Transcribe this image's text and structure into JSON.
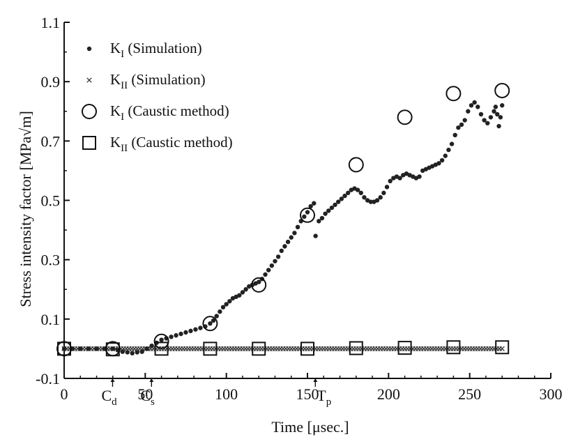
{
  "chart_data": {
    "type": "scatter",
    "title": "",
    "xlabel": "Time [μsec.]",
    "ylabel": "Stress intensity factor [MPa√m]",
    "xlim": [
      0,
      300
    ],
    "ylim": [
      -0.1,
      1.1
    ],
    "xticks": [
      "0",
      "50",
      "100",
      "150",
      "200",
      "250",
      "300"
    ],
    "yticks": [
      "-0.1",
      "0.1",
      "0.3",
      "0.5",
      "0.7",
      "0.9",
      "1.1"
    ],
    "annotations": [
      {
        "main": "C",
        "sub": "d",
        "x": 29
      },
      {
        "main": "C",
        "sub": "s",
        "x": 53
      },
      {
        "main": "T",
        "sub": "p",
        "x": 154
      }
    ],
    "legend_position": "top-left",
    "series": [
      {
        "name": "K_I (Simulation)",
        "label_main": "K",
        "label_sub": "I",
        "label_rest": " (Simulation)",
        "marker": "dot",
        "points": [
          [
            0,
            0.0
          ],
          [
            5,
            0.0
          ],
          [
            10,
            0.0
          ],
          [
            15,
            0.0
          ],
          [
            20,
            0.0
          ],
          [
            25,
            0.0
          ],
          [
            30,
            0.0
          ],
          [
            33,
            -0.005
          ],
          [
            36,
            -0.01
          ],
          [
            39,
            -0.012
          ],
          [
            42,
            -0.015
          ],
          [
            45,
            -0.012
          ],
          [
            48,
            -0.01
          ],
          [
            51,
            0.0
          ],
          [
            54,
            0.01
          ],
          [
            57,
            0.02
          ],
          [
            60,
            0.03
          ],
          [
            63,
            0.035
          ],
          [
            66,
            0.04
          ],
          [
            69,
            0.045
          ],
          [
            72,
            0.05
          ],
          [
            75,
            0.055
          ],
          [
            78,
            0.06
          ],
          [
            81,
            0.065
          ],
          [
            84,
            0.07
          ],
          [
            87,
            0.075
          ],
          [
            90,
            0.085
          ],
          [
            92,
            0.095
          ],
          [
            94,
            0.11
          ],
          [
            96,
            0.125
          ],
          [
            98,
            0.14
          ],
          [
            100,
            0.15
          ],
          [
            102,
            0.16
          ],
          [
            104,
            0.17
          ],
          [
            106,
            0.175
          ],
          [
            108,
            0.18
          ],
          [
            110,
            0.19
          ],
          [
            112,
            0.2
          ],
          [
            114,
            0.21
          ],
          [
            116,
            0.215
          ],
          [
            118,
            0.22
          ],
          [
            120,
            0.225
          ],
          [
            122,
            0.235
          ],
          [
            124,
            0.25
          ],
          [
            126,
            0.265
          ],
          [
            128,
            0.28
          ],
          [
            130,
            0.295
          ],
          [
            132,
            0.31
          ],
          [
            134,
            0.33
          ],
          [
            136,
            0.345
          ],
          [
            138,
            0.36
          ],
          [
            140,
            0.375
          ],
          [
            142,
            0.39
          ],
          [
            144,
            0.41
          ],
          [
            146,
            0.43
          ],
          [
            148,
            0.445
          ],
          [
            150,
            0.46
          ],
          [
            152,
            0.48
          ],
          [
            154,
            0.49
          ],
          [
            155,
            0.38
          ],
          [
            157,
            0.43
          ],
          [
            159,
            0.44
          ],
          [
            161,
            0.455
          ],
          [
            163,
            0.465
          ],
          [
            165,
            0.475
          ],
          [
            167,
            0.485
          ],
          [
            169,
            0.495
          ],
          [
            171,
            0.505
          ],
          [
            173,
            0.515
          ],
          [
            175,
            0.525
          ],
          [
            177,
            0.535
          ],
          [
            179,
            0.54
          ],
          [
            181,
            0.535
          ],
          [
            183,
            0.525
          ],
          [
            185,
            0.51
          ],
          [
            187,
            0.5
          ],
          [
            189,
            0.495
          ],
          [
            191,
            0.495
          ],
          [
            193,
            0.5
          ],
          [
            195,
            0.51
          ],
          [
            197,
            0.525
          ],
          [
            199,
            0.545
          ],
          [
            201,
            0.565
          ],
          [
            203,
            0.575
          ],
          [
            205,
            0.58
          ],
          [
            207,
            0.575
          ],
          [
            209,
            0.585
          ],
          [
            211,
            0.59
          ],
          [
            213,
            0.585
          ],
          [
            215,
            0.58
          ],
          [
            217,
            0.575
          ],
          [
            219,
            0.58
          ],
          [
            221,
            0.6
          ],
          [
            223,
            0.605
          ],
          [
            225,
            0.61
          ],
          [
            227,
            0.615
          ],
          [
            229,
            0.62
          ],
          [
            231,
            0.625
          ],
          [
            233,
            0.635
          ],
          [
            235,
            0.65
          ],
          [
            237,
            0.67
          ],
          [
            239,
            0.69
          ],
          [
            241,
            0.72
          ],
          [
            243,
            0.745
          ],
          [
            245,
            0.755
          ],
          [
            247,
            0.77
          ],
          [
            249,
            0.8
          ],
          [
            251,
            0.82
          ],
          [
            253,
            0.83
          ],
          [
            255,
            0.815
          ],
          [
            257,
            0.79
          ],
          [
            259,
            0.77
          ],
          [
            261,
            0.76
          ],
          [
            263,
            0.78
          ],
          [
            265,
            0.8
          ],
          [
            266,
            0.815
          ],
          [
            267,
            0.79
          ],
          [
            268,
            0.75
          ],
          [
            269,
            0.78
          ],
          [
            270,
            0.82
          ]
        ]
      },
      {
        "name": "K_II (Simulation)",
        "label_main": "K",
        "label_sub": "II",
        "label_rest": " (Simulation)",
        "marker": "cross",
        "points": [
          [
            0,
            0.0
          ],
          [
            10,
            0.0
          ],
          [
            20,
            0.0
          ],
          [
            30,
            0.0
          ],
          [
            40,
            0.0
          ],
          [
            50,
            0.0
          ],
          [
            60,
            0.0
          ],
          [
            70,
            0.0
          ],
          [
            80,
            0.0
          ],
          [
            90,
            0.0
          ],
          [
            100,
            0.0
          ],
          [
            110,
            0.0
          ],
          [
            120,
            0.0
          ],
          [
            130,
            0.0
          ],
          [
            140,
            0.0
          ],
          [
            150,
            0.0
          ],
          [
            160,
            0.0
          ],
          [
            170,
            0.0
          ],
          [
            180,
            0.0
          ],
          [
            190,
            0.0
          ],
          [
            200,
            0.0
          ],
          [
            210,
            0.0
          ],
          [
            220,
            0.0
          ],
          [
            230,
            0.0
          ],
          [
            240,
            0.0
          ],
          [
            250,
            0.0
          ],
          [
            260,
            0.0
          ],
          [
            270,
            0.0
          ]
        ]
      },
      {
        "name": "K_I (Caustic method)",
        "label_main": "K",
        "label_sub": "I",
        "label_rest": " (Caustic method)",
        "marker": "circle",
        "points": [
          [
            0,
            0.0
          ],
          [
            30,
            0.0
          ],
          [
            60,
            0.025
          ],
          [
            90,
            0.085
          ],
          [
            120,
            0.215
          ],
          [
            150,
            0.45
          ],
          [
            180,
            0.62
          ],
          [
            210,
            0.78
          ],
          [
            240,
            0.86
          ],
          [
            270,
            0.87
          ]
        ]
      },
      {
        "name": "K_II (Caustic method)",
        "label_main": "K",
        "label_sub": "II",
        "label_rest": " (Caustic method)",
        "marker": "square",
        "points": [
          [
            0,
            0.0
          ],
          [
            30,
            -0.002
          ],
          [
            60,
            0.0
          ],
          [
            90,
            0.0
          ],
          [
            120,
            0.0
          ],
          [
            150,
            0.0
          ],
          [
            180,
            0.002
          ],
          [
            210,
            0.003
          ],
          [
            240,
            0.005
          ],
          [
            270,
            0.005
          ]
        ]
      }
    ]
  }
}
